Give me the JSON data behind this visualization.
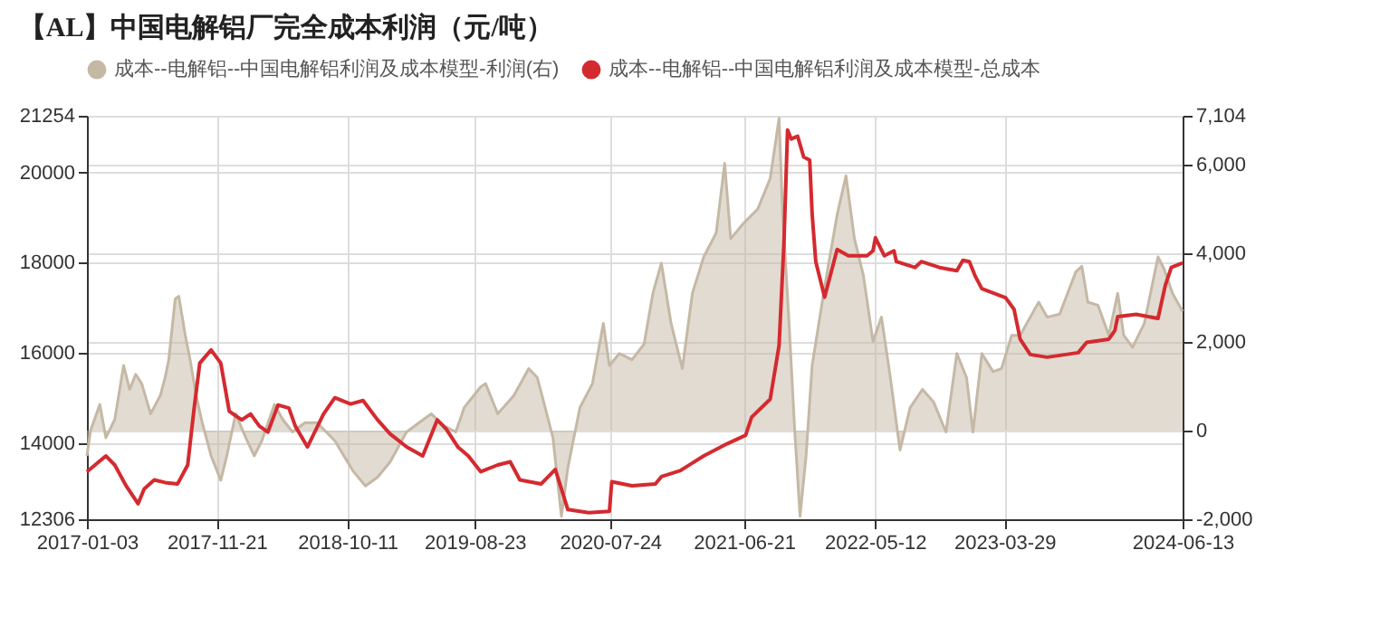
{
  "chart_data": {
    "type": "line",
    "title": "【AL】中国电解铝厂完全成本利润（元/吨）",
    "xlim": [
      "2017-01-03",
      "2024-06-13"
    ],
    "xticks": [
      "2017-01-03",
      "2017-11-21",
      "2018-10-11",
      "2019-08-23",
      "2020-07-24",
      "2021-06-21",
      "2022-05-12",
      "2023-03-29",
      "2024-06-13"
    ],
    "ylim": [
      12306,
      21254
    ],
    "yticks": [
      12306,
      14000,
      16000,
      18000,
      20000,
      21254
    ],
    "y2lim": [
      -2000,
      7104
    ],
    "y2ticks": [
      {
        "value": -2000,
        "label": "-2,000"
      },
      0,
      {
        "value": 2000,
        "label": "2,000"
      },
      {
        "value": 4000,
        "label": "4,000"
      },
      {
        "value": 6000,
        "label": "6,000"
      },
      {
        "value": 7104,
        "label": "7,104"
      }
    ],
    "grid": true,
    "legend": "top",
    "series": [
      {
        "name": "成本--电解铝--中国电解铝利润及成本模型-利润(右)",
        "type": "area",
        "axis": "y2",
        "color": "#c5b8a5",
        "x": [
          "2017-01-03",
          "2017-01-12",
          "2017-02-04",
          "2017-02-19",
          "2017-03-13",
          "2017-04-04",
          "2017-04-19",
          "2017-05-04",
          "2017-05-19",
          "2017-06-10",
          "2017-07-04",
          "2017-07-16",
          "2017-07-25",
          "2017-08-10",
          "2017-08-19",
          "2017-09-04",
          "2017-09-16",
          "2017-10-01",
          "2017-10-16",
          "2017-11-07",
          "2017-12-01",
          "2017-12-16",
          "2018-01-07",
          "2018-02-01",
          "2018-02-22",
          "2018-03-13",
          "2018-04-13",
          "2018-05-04",
          "2018-05-28",
          "2018-06-28",
          "2018-07-28",
          "2018-09-10",
          "2018-10-25",
          "2018-11-25",
          "2018-12-25",
          "2019-01-25",
          "2019-03-07",
          "2019-04-07",
          "2019-05-07",
          "2019-06-07",
          "2019-07-07",
          "2019-07-28",
          "2019-09-07",
          "2019-09-19",
          "2019-10-19",
          "2019-11-28",
          "2020-01-04",
          "2020-01-25",
          "2020-02-10",
          "2020-03-04",
          "2020-03-25",
          "2020-04-10",
          "2020-05-10",
          "2020-06-10",
          "2020-07-07",
          "2020-07-22",
          "2020-08-16",
          "2020-09-16",
          "2020-10-16",
          "2020-11-07",
          "2020-11-28",
          "2020-12-22",
          "2021-01-19",
          "2021-02-13",
          "2021-03-13",
          "2021-04-13",
          "2021-05-04",
          "2021-05-19",
          "2021-06-19",
          "2021-07-25",
          "2021-08-25",
          "2021-09-16",
          "2021-09-25",
          "2021-10-10",
          "2021-10-25",
          "2021-11-07",
          "2021-11-22",
          "2021-12-07",
          "2022-01-07",
          "2022-02-07",
          "2022-03-01",
          "2022-03-22",
          "2022-04-13",
          "2022-05-07",
          "2022-05-28",
          "2022-06-19",
          "2022-07-13",
          "2022-08-07",
          "2022-09-07",
          "2022-10-04",
          "2022-11-04",
          "2022-12-01",
          "2022-12-25",
          "2023-01-10",
          "2023-02-01",
          "2023-03-01",
          "2023-03-22",
          "2023-04-16",
          "2023-05-07",
          "2023-06-01",
          "2023-06-22",
          "2023-07-13",
          "2023-08-13",
          "2023-09-22",
          "2023-10-07",
          "2023-10-22",
          "2023-11-16",
          "2023-12-13",
          "2024-01-04",
          "2024-01-19",
          "2024-02-10",
          "2024-03-10",
          "2024-04-13",
          "2024-04-28",
          "2024-05-19",
          "2024-06-13"
        ],
        "values": [
          -570,
          0,
          590,
          -160,
          250,
          1470,
          930,
          1270,
          1060,
          380,
          790,
          1200,
          1600,
          2970,
          3030,
          2150,
          1600,
          790,
          180,
          -570,
          -1120,
          -570,
          380,
          -160,
          -570,
          -230,
          590,
          250,
          -30,
          180,
          180,
          -230,
          -910,
          -1250,
          -1050,
          -710,
          -30,
          180,
          380,
          110,
          -30,
          520,
          990,
          1060,
          380,
          790,
          1400,
          1200,
          650,
          -160,
          -1930,
          -840,
          520,
          1060,
          2420,
          1470,
          1740,
          1600,
          1950,
          3100,
          3780,
          2420,
          1400,
          3100,
          3920,
          4460,
          6030,
          4330,
          4670,
          5000,
          5690,
          7050,
          4870,
          2560,
          -30,
          -1930,
          -570,
          1470,
          3240,
          4870,
          5750,
          4330,
          3510,
          2010,
          2560,
          1200,
          -440,
          520,
          930,
          650,
          -30,
          1740,
          1200,
          -30,
          1740,
          1330,
          1400,
          2150,
          2150,
          2560,
          2900,
          2560,
          2630,
          3580,
          3710,
          2900,
          2830,
          2150,
          3100,
          2150,
          1880,
          2420,
          3920,
          3650,
          3100,
          2690
        ]
      },
      {
        "name": "成本--电解铝--中国电解铝利润及成本模型-总成本",
        "color": "#d42a2f",
        "x": [
          "2017-01-03",
          "2017-02-19",
          "2017-03-13",
          "2017-04-10",
          "2017-05-10",
          "2017-05-25",
          "2017-06-19",
          "2017-07-16",
          "2017-08-16",
          "2017-09-10",
          "2017-09-25",
          "2017-10-10",
          "2017-11-07",
          "2017-12-01",
          "2017-12-22",
          "2018-01-22",
          "2018-02-13",
          "2018-03-07",
          "2018-03-28",
          "2018-04-22",
          "2018-05-19",
          "2018-06-04",
          "2018-07-04",
          "2018-08-13",
          "2018-09-10",
          "2018-10-19",
          "2018-11-19",
          "2018-12-25",
          "2019-01-25",
          "2019-03-07",
          "2019-04-16",
          "2019-05-22",
          "2019-06-13",
          "2019-07-13",
          "2019-08-07",
          "2019-09-07",
          "2019-10-19",
          "2019-11-19",
          "2019-12-13",
          "2020-02-04",
          "2020-03-10",
          "2020-03-25",
          "2020-04-10",
          "2020-06-01",
          "2020-07-22",
          "2020-07-28",
          "2020-09-16",
          "2020-11-13",
          "2020-11-28",
          "2021-01-13",
          "2021-03-13",
          "2021-05-10",
          "2021-06-25",
          "2021-07-10",
          "2021-08-25",
          "2021-09-16",
          "2021-09-28",
          "2021-10-07",
          "2021-10-16",
          "2021-11-01",
          "2021-11-16",
          "2021-12-01",
          "2021-12-07",
          "2021-12-16",
          "2022-01-07",
          "2022-02-07",
          "2022-03-07",
          "2022-04-22",
          "2022-05-07",
          "2022-05-13",
          "2022-06-04",
          "2022-06-28",
          "2022-07-04",
          "2022-08-19",
          "2022-09-04",
          "2022-10-19",
          "2022-12-01",
          "2022-12-16",
          "2023-01-01",
          "2023-01-16",
          "2023-02-01",
          "2023-04-01",
          "2023-04-22",
          "2023-05-07",
          "2023-06-01",
          "2023-07-13",
          "2023-09-28",
          "2023-10-19",
          "2023-12-13",
          "2023-12-28",
          "2024-01-04",
          "2024-02-19",
          "2024-04-13",
          "2024-05-01",
          "2024-05-16",
          "2024-06-13"
        ],
        "values": [
          13360,
          13710,
          13510,
          13050,
          12650,
          12980,
          13180,
          13120,
          13090,
          13510,
          14700,
          15770,
          16060,
          15770,
          14700,
          14510,
          14640,
          14370,
          14240,
          14840,
          14770,
          14370,
          13910,
          14640,
          15000,
          14860,
          14940,
          14510,
          14200,
          13910,
          13710,
          14510,
          14310,
          13900,
          13710,
          13360,
          13510,
          13580,
          13180,
          13090,
          13410,
          12980,
          12520,
          12450,
          12480,
          13140,
          13050,
          13090,
          13250,
          13380,
          13710,
          13980,
          14170,
          14570,
          14970,
          16160,
          18420,
          20940,
          20740,
          20800,
          20340,
          20270,
          19080,
          18020,
          17230,
          18290,
          18150,
          18150,
          18260,
          18550,
          18150,
          18260,
          18020,
          17890,
          18020,
          17890,
          17820,
          18050,
          18020,
          17690,
          17420,
          17220,
          16960,
          16300,
          15960,
          15900,
          16000,
          16230,
          16300,
          16490,
          16800,
          16850,
          16760,
          17490,
          17890,
          17990
        ]
      }
    ]
  }
}
